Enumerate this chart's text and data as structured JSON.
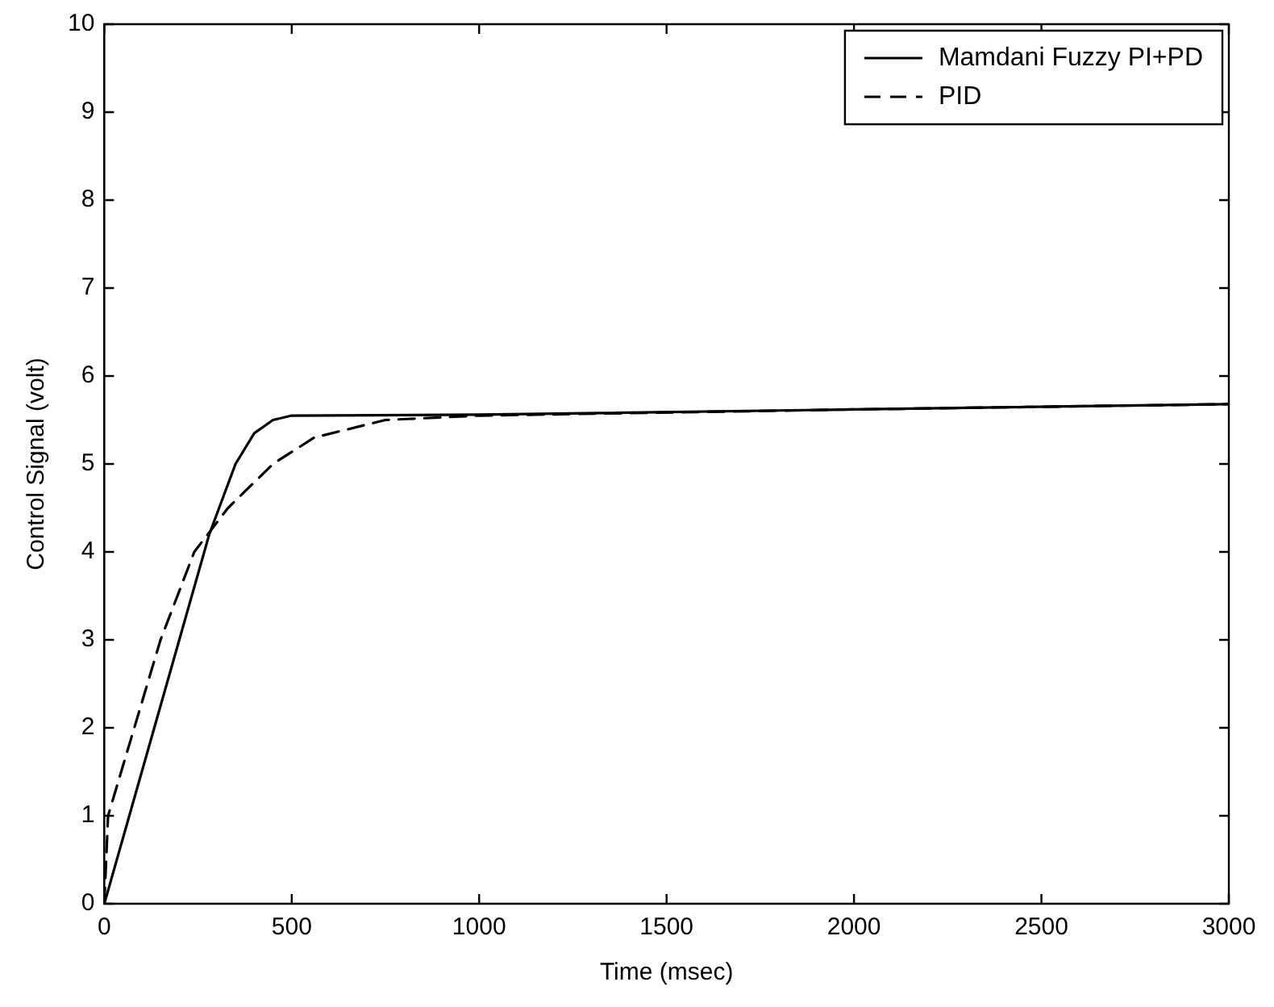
{
  "chart_data": {
    "type": "line",
    "xlabel": "Time (msec)",
    "ylabel": "Control Signal (volt)",
    "xlim": [
      0,
      3000
    ],
    "xticks": [
      0,
      500,
      1000,
      1500,
      2000,
      2500,
      3000
    ],
    "ylim": [
      0,
      10
    ],
    "yticks": [
      0,
      1,
      2,
      3,
      4,
      5,
      6,
      7,
      8,
      9,
      10
    ],
    "grid": false,
    "legend": "top right",
    "marker": "none",
    "series": [
      {
        "name": "Mamdani Fuzzy PI+PD",
        "color": "#000000",
        "line_style": "solid",
        "x": [
          0,
          100,
          200,
          280,
          350,
          400,
          450,
          500,
          1000,
          2000,
          3000
        ],
        "values": [
          0,
          1.5,
          3.0,
          4.2,
          5.0,
          5.35,
          5.5,
          5.55,
          5.56,
          5.62,
          5.68
        ]
      },
      {
        "name": "PID",
        "color": "#000000",
        "line_style": "dashed",
        "x": [
          0,
          10,
          80,
          150,
          240,
          330,
          450,
          560,
          750,
          1000,
          2000,
          3000
        ],
        "values": [
          0,
          1.0,
          2.0,
          3.0,
          4.0,
          4.5,
          5.0,
          5.3,
          5.5,
          5.55,
          5.62,
          5.68
        ]
      }
    ]
  }
}
